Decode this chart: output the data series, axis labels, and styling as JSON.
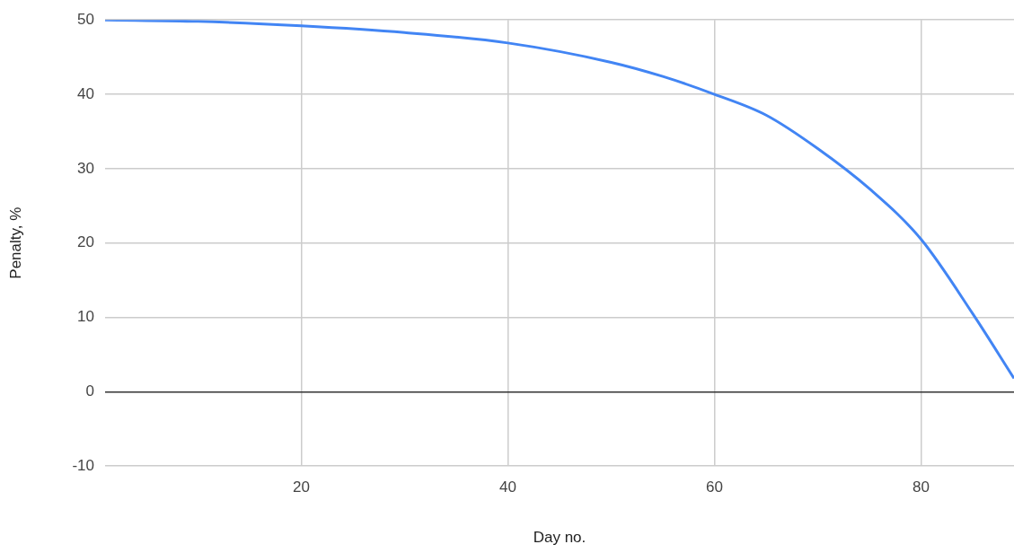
{
  "chart_data": {
    "type": "line",
    "xlabel": "Day no.",
    "ylabel": "Penalty, %",
    "x": [
      1,
      10,
      20,
      30,
      40,
      50,
      55,
      60,
      65,
      70,
      75,
      80,
      85,
      89
    ],
    "series": [
      {
        "color": "#4285f4",
        "values": [
          50,
          49.8,
          49.2,
          48.3,
          46.9,
          44.3,
          42.4,
          40,
          37.2,
          32.7,
          27.3,
          20.5,
          10.5,
          1.8
        ]
      }
    ],
    "xlim": [
      1,
      89
    ],
    "xticks": [
      20,
      40,
      60,
      80
    ],
    "ylim": [
      -10,
      50
    ],
    "yticks": [
      -10,
      0,
      10,
      20,
      30,
      40,
      50
    ],
    "grid": true,
    "legend": false,
    "marker": "none",
    "line_style": "solid"
  }
}
